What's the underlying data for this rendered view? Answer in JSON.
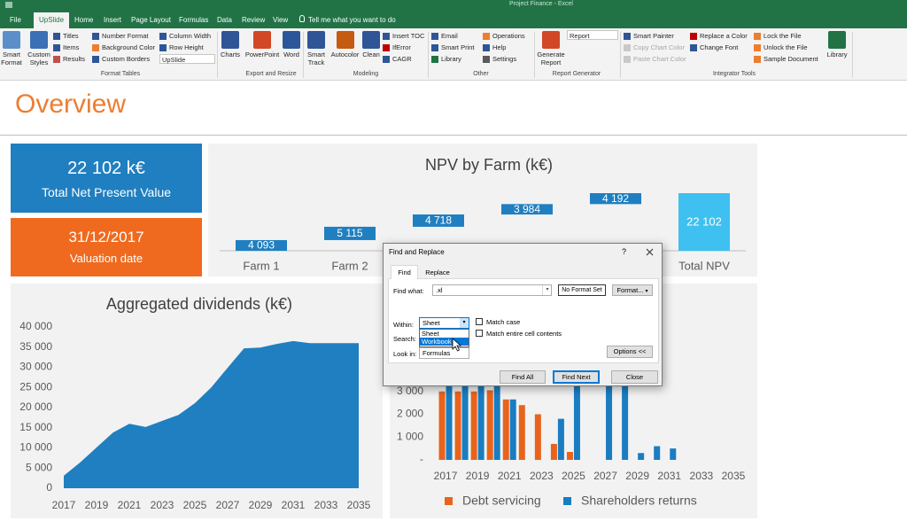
{
  "window_title": "Project Finance - Excel",
  "tabs": [
    "File",
    "UpSlide",
    "Home",
    "Insert",
    "Page Layout",
    "Formulas",
    "Data",
    "Review",
    "View"
  ],
  "tell_me": "Tell me what you want to do",
  "ribbon": {
    "groups": [
      {
        "label": "Format Tables",
        "items": [
          "Smart Format",
          "Custom Styles",
          "Titles",
          "Items",
          "Results",
          "Number Format",
          "Background Color",
          "Custom Borders",
          "Column Width",
          "Row Height",
          "UpSlide"
        ]
      },
      {
        "label": "Export and Resize",
        "items": [
          "Charts",
          "PowerPoint",
          "Word"
        ]
      },
      {
        "label": "Modeling",
        "items": [
          "Smart Track",
          "Autocolor",
          "Clean",
          "Insert TOC",
          "IfError",
          "CAGR"
        ]
      },
      {
        "label": "Other",
        "items": [
          "Email",
          "Smart Print",
          "Library",
          "Operations",
          "Help",
          "Settings"
        ]
      },
      {
        "label": "Report Generator",
        "items": [
          "Generate Report",
          "Report"
        ]
      },
      {
        "label": "Integrator Tools",
        "items": [
          "Smart Painter",
          "Copy Chart Color",
          "Paste Chart Color",
          "Replace a Color",
          "Change Font",
          "Lock the File",
          "Unlock the File",
          "Sample Document",
          "Library"
        ]
      }
    ]
  },
  "sheet": {
    "title": "Overview",
    "kpis": [
      {
        "value": "22 102 k€",
        "label": "Total Net Present Value",
        "color": "#1f7fc0"
      },
      {
        "value": "31/12/2017",
        "label": "Valuation date",
        "color": "#ef6a1f"
      }
    ]
  },
  "chart_data": [
    {
      "type": "waterfall",
      "title": "NPV by Farm (k€)",
      "categories": [
        "Farm 1",
        "Farm 2",
        null,
        null,
        null,
        "Total NPV"
      ],
      "values": [
        4093,
        5115,
        4718,
        3984,
        4192,
        22102
      ],
      "value_labels": [
        "4 093",
        "5 115",
        "4 718",
        "3 984",
        "4 192",
        "22 102"
      ],
      "color": "#1f7fc0",
      "total_color": "#3ec0f0"
    },
    {
      "type": "area",
      "title": "Aggregated dividends (k€)",
      "x": [
        2017,
        2018,
        2019,
        2020,
        2021,
        2022,
        2023,
        2024,
        2025,
        2026,
        2027,
        2028,
        2029,
        2030,
        2031,
        2032,
        2033,
        2034,
        2035
      ],
      "values": [
        3100,
        6400,
        10100,
        13800,
        16000,
        15200,
        16700,
        18200,
        21100,
        25000,
        29900,
        34700,
        34900,
        35800,
        36500,
        36000,
        36000,
        36000,
        36000
      ],
      "color": "#1f7fc0",
      "xlim": [
        2017,
        2035
      ],
      "xticks": [
        2017,
        2019,
        2021,
        2023,
        2025,
        2027,
        2029,
        2031,
        2033,
        2035
      ],
      "ylim": [
        0,
        40000
      ],
      "yticks": [
        0,
        {
          "value": 5000,
          "label": "5 000"
        },
        {
          "value": 10000,
          "label": "10 000"
        },
        {
          "value": 15000,
          "label": "15 000"
        },
        {
          "value": 20000,
          "label": "20 000"
        },
        {
          "value": 25000,
          "label": "25 000"
        },
        {
          "value": 30000,
          "label": "30 000"
        },
        {
          "value": 35000,
          "label": "35 000"
        },
        {
          "value": 40000,
          "label": "40 000"
        }
      ],
      "grid": false
    },
    {
      "type": "bar",
      "x": [
        2017,
        2018,
        2019,
        2020,
        2021,
        2022,
        2023,
        2024,
        2025,
        2026,
        2027,
        2028,
        2029,
        2030,
        2031,
        2032,
        2033,
        2034,
        2035
      ],
      "series": [
        {
          "name": "Debt servicing",
          "color": "#e8641c",
          "values": [
            3000,
            3000,
            3000,
            3050,
            2650,
            2400,
            2000,
            700,
            350,
            0,
            0,
            0,
            0,
            0,
            0,
            0,
            0,
            0,
            0
          ]
        },
        {
          "name": "Shareholders returns",
          "color": "#1a7dc2",
          "values": [
            3300,
            3300,
            3300,
            3300,
            2650,
            0,
            0,
            1800,
            3300,
            0,
            3300,
            3300,
            300,
            600,
            500,
            0,
            0,
            0,
            0
          ]
        }
      ],
      "xlim": [
        2016.5,
        2035.5
      ],
      "xticks": [
        2017,
        2019,
        2021,
        2023,
        2025,
        2027,
        2029,
        2031,
        2033,
        2035
      ],
      "ylim": [
        0,
        4000
      ],
      "yticks": [
        {
          "value": 0,
          "label": "-"
        },
        {
          "value": 1000,
          "label": "1 000"
        },
        {
          "value": 2000,
          "label": "2 000"
        },
        {
          "value": 3000,
          "label": "3 000"
        }
      ],
      "grid": false,
      "legend": "bottom"
    }
  ],
  "dialog": {
    "title": "Find and Replace",
    "help": "?",
    "tabs": [
      "Find",
      "Replace"
    ],
    "find_what_label": "Find what:",
    "find_what": ".xl",
    "format_status": "No Format Set",
    "format_button": "Format...",
    "within_label": "Within:",
    "within": "Sheet",
    "within_options": [
      "Sheet",
      "Workbook"
    ],
    "search_label": "Search:",
    "look_in_label": "Look in:",
    "look_in": "Formulas",
    "match_case": "Match case",
    "match_entire": "Match entire cell contents",
    "options_button": "Options <<",
    "buttons": [
      "Find All",
      "Find Next",
      "Close"
    ]
  }
}
